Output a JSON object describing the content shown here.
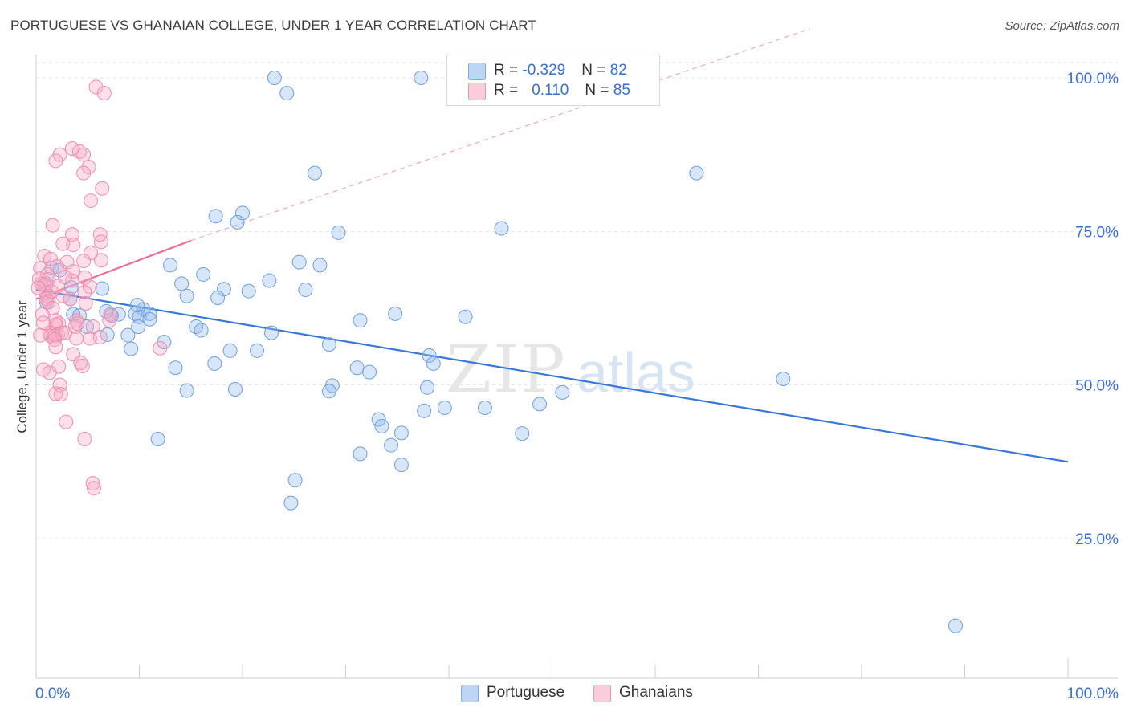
{
  "header": {
    "title": "PORTUGUESE VS GHANAIAN COLLEGE, UNDER 1 YEAR CORRELATION CHART",
    "source": "Source: ZipAtlas.com"
  },
  "watermark": {
    "zip": "ZIP",
    "atlas": "atlas"
  },
  "legend": {
    "rows": [
      {
        "r_label": "R = ",
        "r_value": "-0.329",
        "n_label": "N = ",
        "n_value": "82",
        "color": "#a9c8f0"
      },
      {
        "r_label": "R = ",
        "r_value": "0.110",
        "n_label": "N = ",
        "n_value": "85",
        "color": "#f7b8cb"
      }
    ]
  },
  "bottom_legend": {
    "items": [
      "Portuguese",
      "Ghanaians"
    ]
  },
  "chart_data": {
    "type": "scatter",
    "title": "PORTUGUESE VS GHANAIAN COLLEGE, UNDER 1 YEAR CORRELATION CHART",
    "xlabel": "",
    "ylabel": "College, Under 1 year",
    "xlim": [
      0,
      100
    ],
    "ylim": [
      0,
      105
    ],
    "x_tick_labels": [
      "0.0%",
      "100.0%"
    ],
    "y_ticks": [
      25,
      50,
      75,
      100
    ],
    "y_tick_labels": [
      "25.0%",
      "50.0%",
      "75.0%",
      "100.0%"
    ],
    "grid": true,
    "colors": {
      "portuguese": "#3a78d8",
      "ghanaians": "#e8709a",
      "axis_text": "#3a6ed0"
    },
    "series": [
      {
        "name": "Portuguese",
        "r": -0.329,
        "n": 82,
        "trend": {
          "x0": 0,
          "y0": 65.5,
          "x1": 100,
          "y1": 37.5
        },
        "points": [
          [
            23.1,
            100.0
          ],
          [
            37.3,
            100.0
          ],
          [
            24.3,
            97.5
          ],
          [
            27.0,
            84.5
          ],
          [
            64.0,
            84.5
          ],
          [
            17.4,
            77.5
          ],
          [
            20.0,
            78.0
          ],
          [
            19.5,
            76.5
          ],
          [
            29.3,
            74.8
          ],
          [
            45.1,
            75.5
          ],
          [
            1.5,
            69.0
          ],
          [
            13.0,
            69.5
          ],
          [
            25.5,
            70.0
          ],
          [
            27.5,
            69.5
          ],
          [
            16.2,
            68.0
          ],
          [
            1.0,
            66.5
          ],
          [
            14.1,
            66.5
          ],
          [
            22.6,
            67.0
          ],
          [
            6.4,
            65.7
          ],
          [
            18.2,
            65.6
          ],
          [
            20.6,
            65.3
          ],
          [
            26.1,
            65.5
          ],
          [
            14.6,
            64.5
          ],
          [
            17.6,
            64.2
          ],
          [
            3.3,
            64.0
          ],
          [
            1.0,
            63.5
          ],
          [
            6.8,
            62.0
          ],
          [
            10.4,
            62.3
          ],
          [
            11.0,
            61.6
          ],
          [
            3.6,
            61.5
          ],
          [
            8.0,
            61.5
          ],
          [
            9.6,
            61.6
          ],
          [
            7.3,
            61.3
          ],
          [
            10.0,
            61.1
          ],
          [
            34.8,
            61.6
          ],
          [
            41.6,
            61.1
          ],
          [
            31.4,
            60.5
          ],
          [
            11.0,
            60.7
          ],
          [
            15.5,
            59.5
          ],
          [
            4.9,
            59.5
          ],
          [
            16.0,
            58.9
          ],
          [
            9.9,
            59.5
          ],
          [
            22.8,
            58.5
          ],
          [
            6.9,
            58.2
          ],
          [
            8.9,
            58.1
          ],
          [
            12.4,
            57.0
          ],
          [
            28.4,
            56.6
          ],
          [
            9.2,
            55.9
          ],
          [
            18.8,
            55.6
          ],
          [
            21.4,
            55.6
          ],
          [
            38.1,
            54.8
          ],
          [
            38.5,
            53.5
          ],
          [
            17.3,
            53.5
          ],
          [
            13.5,
            52.8
          ],
          [
            31.1,
            52.8
          ],
          [
            32.3,
            52.1
          ],
          [
            72.4,
            51.0
          ],
          [
            28.7,
            49.9
          ],
          [
            19.3,
            49.3
          ],
          [
            14.6,
            49.1
          ],
          [
            28.4,
            49.0
          ],
          [
            37.9,
            49.6
          ],
          [
            51.0,
            48.8
          ],
          [
            33.2,
            44.4
          ],
          [
            33.5,
            43.3
          ],
          [
            35.4,
            42.2
          ],
          [
            47.1,
            42.1
          ],
          [
            48.8,
            46.9
          ],
          [
            37.6,
            45.8
          ],
          [
            39.6,
            46.3
          ],
          [
            43.5,
            46.3
          ],
          [
            34.4,
            40.2
          ],
          [
            11.8,
            41.2
          ],
          [
            31.4,
            38.8
          ],
          [
            35.4,
            37.0
          ],
          [
            25.1,
            34.5
          ],
          [
            24.7,
            30.8
          ],
          [
            89.1,
            10.8
          ],
          [
            3.4,
            65.9
          ],
          [
            4.2,
            61.3
          ],
          [
            2.3,
            68.7
          ],
          [
            9.8,
            63.0
          ]
        ]
      },
      {
        "name": "Ghanaians",
        "r": 0.11,
        "n": 85,
        "trend": {
          "x0": 0,
          "y0": 64.0,
          "x1": 15,
          "y1": 73.5
        },
        "trend_extended": {
          "x0": 15,
          "y0": 73.5,
          "x1": 75,
          "y1": 108.0
        },
        "points": [
          [
            5.8,
            98.5
          ],
          [
            6.6,
            97.5
          ],
          [
            3.5,
            88.5
          ],
          [
            4.2,
            88.0
          ],
          [
            2.3,
            87.5
          ],
          [
            4.6,
            87.5
          ],
          [
            1.9,
            86.5
          ],
          [
            5.1,
            85.5
          ],
          [
            4.6,
            84.5
          ],
          [
            6.4,
            82.0
          ],
          [
            5.3,
            80.0
          ],
          [
            1.6,
            76.0
          ],
          [
            3.5,
            74.5
          ],
          [
            6.2,
            74.5
          ],
          [
            2.6,
            73.0
          ],
          [
            3.6,
            72.8
          ],
          [
            6.3,
            73.3
          ],
          [
            5.3,
            71.5
          ],
          [
            0.8,
            71.0
          ],
          [
            1.4,
            70.5
          ],
          [
            3.0,
            70.0
          ],
          [
            4.6,
            70.2
          ],
          [
            6.3,
            70.3
          ],
          [
            0.4,
            69.0
          ],
          [
            2.0,
            69.3
          ],
          [
            3.6,
            68.5
          ],
          [
            1.1,
            68.0
          ],
          [
            0.3,
            67.3
          ],
          [
            1.2,
            67.2
          ],
          [
            3.5,
            67.0
          ],
          [
            4.7,
            67.5
          ],
          [
            0.5,
            66.5
          ],
          [
            0.8,
            66.3
          ],
          [
            2.1,
            66.1
          ],
          [
            5.2,
            66.0
          ],
          [
            0.9,
            65.0
          ],
          [
            1.1,
            64.5
          ],
          [
            2.6,
            64.5
          ],
          [
            4.7,
            65.1
          ],
          [
            1.0,
            64.0
          ],
          [
            1.2,
            63.5
          ],
          [
            4.8,
            63.3
          ],
          [
            1.6,
            62.5
          ],
          [
            1.9,
            60.5
          ],
          [
            2.2,
            60.0
          ],
          [
            3.9,
            60.5
          ],
          [
            7.1,
            60.5
          ],
          [
            1.9,
            59.8
          ],
          [
            3.8,
            59.5
          ],
          [
            5.5,
            59.5
          ],
          [
            1.3,
            58.5
          ],
          [
            1.7,
            58.3
          ],
          [
            2.1,
            58.2
          ],
          [
            1.4,
            58.0
          ],
          [
            1.8,
            58.0
          ],
          [
            2.5,
            58.5
          ],
          [
            2.8,
            58.5
          ],
          [
            0.4,
            58.1
          ],
          [
            3.9,
            57.6
          ],
          [
            5.2,
            57.6
          ],
          [
            6.2,
            57.8
          ],
          [
            1.8,
            57.4
          ],
          [
            1.9,
            56.2
          ],
          [
            12.0,
            56.0
          ],
          [
            3.6,
            55.0
          ],
          [
            4.3,
            53.6
          ],
          [
            2.2,
            53.0
          ],
          [
            4.5,
            53.1
          ],
          [
            0.7,
            52.5
          ],
          [
            1.3,
            52.0
          ],
          [
            2.3,
            50.0
          ],
          [
            1.9,
            48.6
          ],
          [
            2.4,
            48.5
          ],
          [
            2.9,
            44.0
          ],
          [
            4.7,
            41.2
          ],
          [
            5.5,
            34.0
          ],
          [
            5.6,
            33.2
          ],
          [
            4.0,
            60.0
          ],
          [
            0.6,
            61.5
          ],
          [
            1.5,
            65.2
          ],
          [
            2.8,
            67.6
          ],
          [
            7.2,
            61.5
          ],
          [
            0.2,
            65.8
          ],
          [
            3.3,
            64.0
          ],
          [
            0.7,
            60.1
          ]
        ]
      }
    ]
  }
}
